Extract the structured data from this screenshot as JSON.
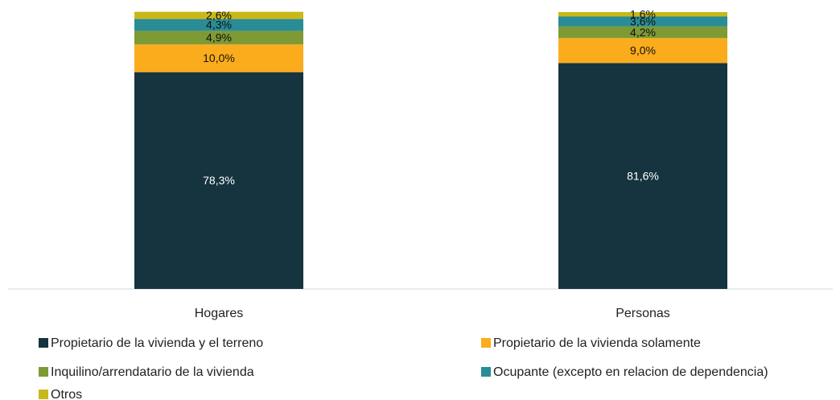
{
  "chart_data": {
    "type": "stacked_bar",
    "categories": [
      "Hogares",
      "Personas"
    ],
    "ylim": [
      0,
      100
    ],
    "series": [
      {
        "name": "Propietario de la vivienda y el terreno",
        "color": "#16343f",
        "values": [
          78.3,
          81.6
        ],
        "value_labels": [
          "78,3%",
          "81,6%"
        ]
      },
      {
        "name": "Propietario de la vivienda solamente",
        "color": "#fbac1c",
        "values": [
          10.0,
          9.0
        ],
        "value_labels": [
          "10,0%",
          "9,0%"
        ]
      },
      {
        "name": "Inquilino/arrendatario de la vivienda",
        "color": "#7e9a35",
        "values": [
          4.9,
          4.2
        ],
        "value_labels": [
          "4,9%",
          "4,2%"
        ]
      },
      {
        "name": "Ocupante (excepto en relacion de dependencia)",
        "color": "#2a8c96",
        "values": [
          4.3,
          3.6
        ],
        "value_labels": [
          "4,3%",
          "3,6%"
        ]
      },
      {
        "name": "Otros",
        "color": "#c9b81a",
        "values": [
          2.6,
          1.6
        ],
        "value_labels": [
          "2,6%",
          "1,6%"
        ]
      }
    ]
  }
}
